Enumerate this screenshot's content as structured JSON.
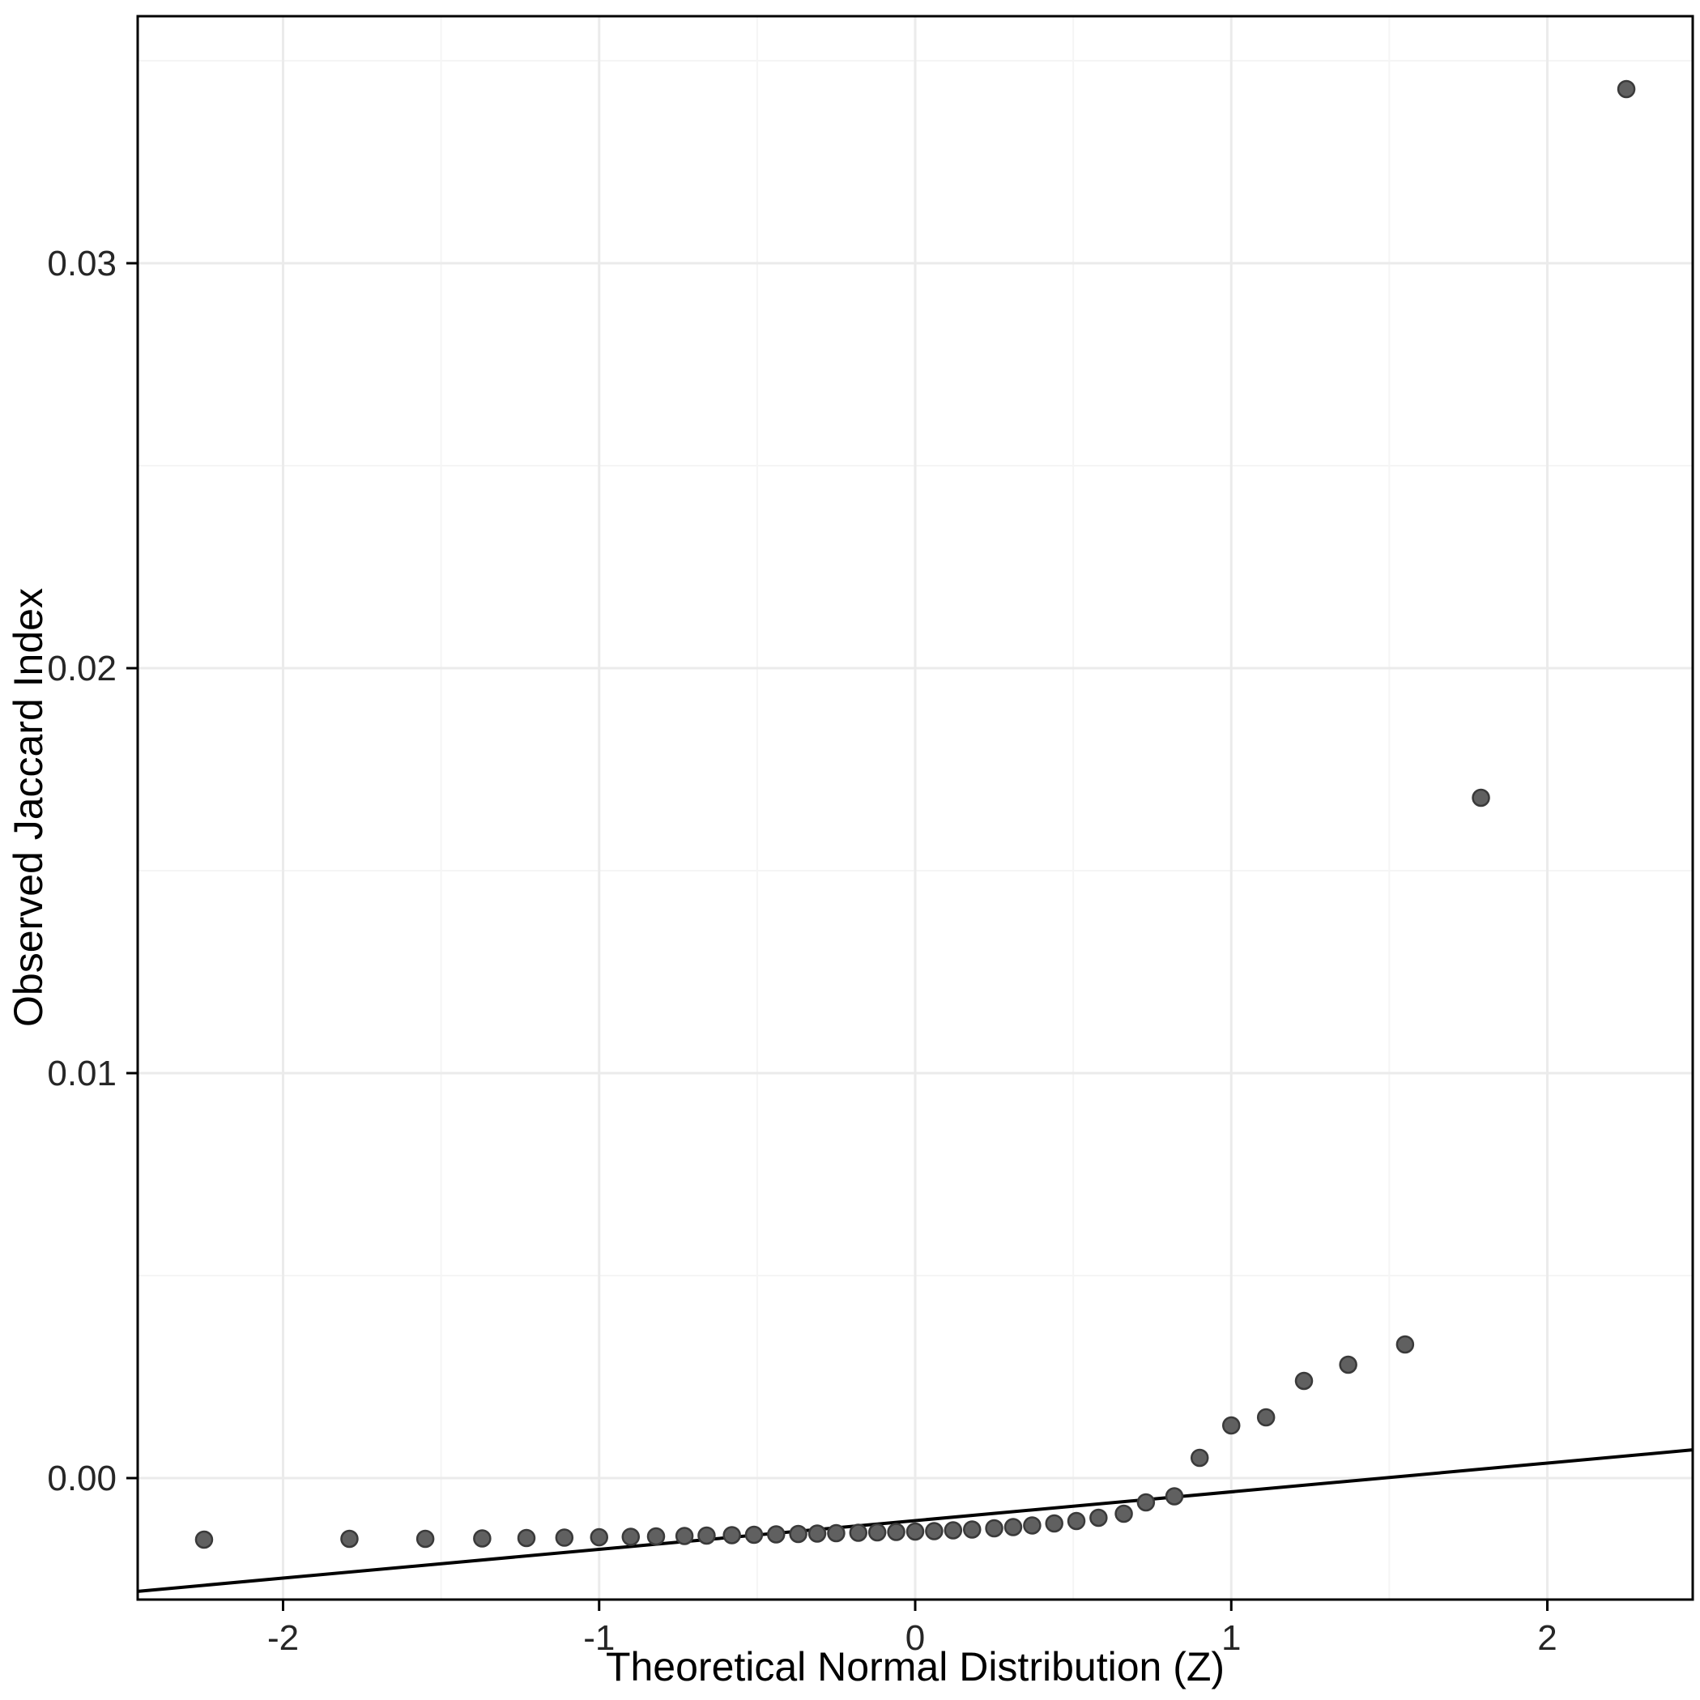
{
  "chart_data": {
    "type": "scatter",
    "xlabel": "Theoretical Normal Distribution (Z)",
    "ylabel": "Observed Jaccard Index",
    "xlim": [
      -2.46,
      2.46
    ],
    "ylim": [
      -0.003,
      0.0361
    ],
    "x_major_ticks": [
      -2,
      -1,
      0,
      1,
      2
    ],
    "x_tick_labels": [
      "-2",
      "-1",
      "0",
      "1",
      "2"
    ],
    "x_minor_ticks": [
      -1.5,
      -0.5,
      0.5,
      1.5
    ],
    "y_major_ticks": [
      0.0,
      0.01,
      0.02,
      0.03
    ],
    "y_tick_labels": [
      "0.00",
      "0.01",
      "0.02",
      "0.03"
    ],
    "y_minor_ticks": [
      0.005,
      0.015,
      0.025,
      0.035
    ],
    "grid": true,
    "legend": "none",
    "reference_line": {
      "slope": 0.00071,
      "intercept": -0.00105
    },
    "points": [
      [
        -2.25,
        -0.00152
      ],
      [
        -1.79,
        -0.0015
      ],
      [
        -1.55,
        -0.0015
      ],
      [
        -1.37,
        -0.00149
      ],
      [
        -1.23,
        -0.00148
      ],
      [
        -1.11,
        -0.00147
      ],
      [
        -1.0,
        -0.00146
      ],
      [
        -0.9,
        -0.00145
      ],
      [
        -0.82,
        -0.00144
      ],
      [
        -0.73,
        -0.00143
      ],
      [
        -0.66,
        -0.00142
      ],
      [
        -0.58,
        -0.00141
      ],
      [
        -0.51,
        -0.0014
      ],
      [
        -0.44,
        -0.00139
      ],
      [
        -0.37,
        -0.00138
      ],
      [
        -0.31,
        -0.00137
      ],
      [
        -0.25,
        -0.00136
      ],
      [
        -0.18,
        -0.00135
      ],
      [
        -0.12,
        -0.00134
      ],
      [
        -0.06,
        -0.00133
      ],
      [
        0.0,
        -0.00132
      ],
      [
        0.06,
        -0.00131
      ],
      [
        0.12,
        -0.00129
      ],
      [
        0.18,
        -0.00127
      ],
      [
        0.25,
        -0.00124
      ],
      [
        0.31,
        -0.00121
      ],
      [
        0.37,
        -0.00117
      ],
      [
        0.44,
        -0.00112
      ],
      [
        0.51,
        -0.00106
      ],
      [
        0.58,
        -0.00098
      ],
      [
        0.66,
        -0.00088
      ],
      [
        0.73,
        -0.0006
      ],
      [
        0.82,
        -0.00045
      ],
      [
        0.9,
        0.0005
      ],
      [
        1.0,
        0.0013
      ],
      [
        1.11,
        0.0015
      ],
      [
        1.23,
        0.0024
      ],
      [
        1.37,
        0.0028
      ],
      [
        1.55,
        0.0033
      ],
      [
        1.79,
        0.0168
      ],
      [
        2.25,
        0.0343
      ]
    ],
    "colors": {
      "point_fill": "#606060",
      "point_stroke": "#3a3a3a",
      "line": "#000000",
      "grid_major": "#ebebeb",
      "grid_minor": "#f5f5f5",
      "panel_border": "#000000",
      "tick_mark": "#000000",
      "background": "#ffffff"
    }
  }
}
